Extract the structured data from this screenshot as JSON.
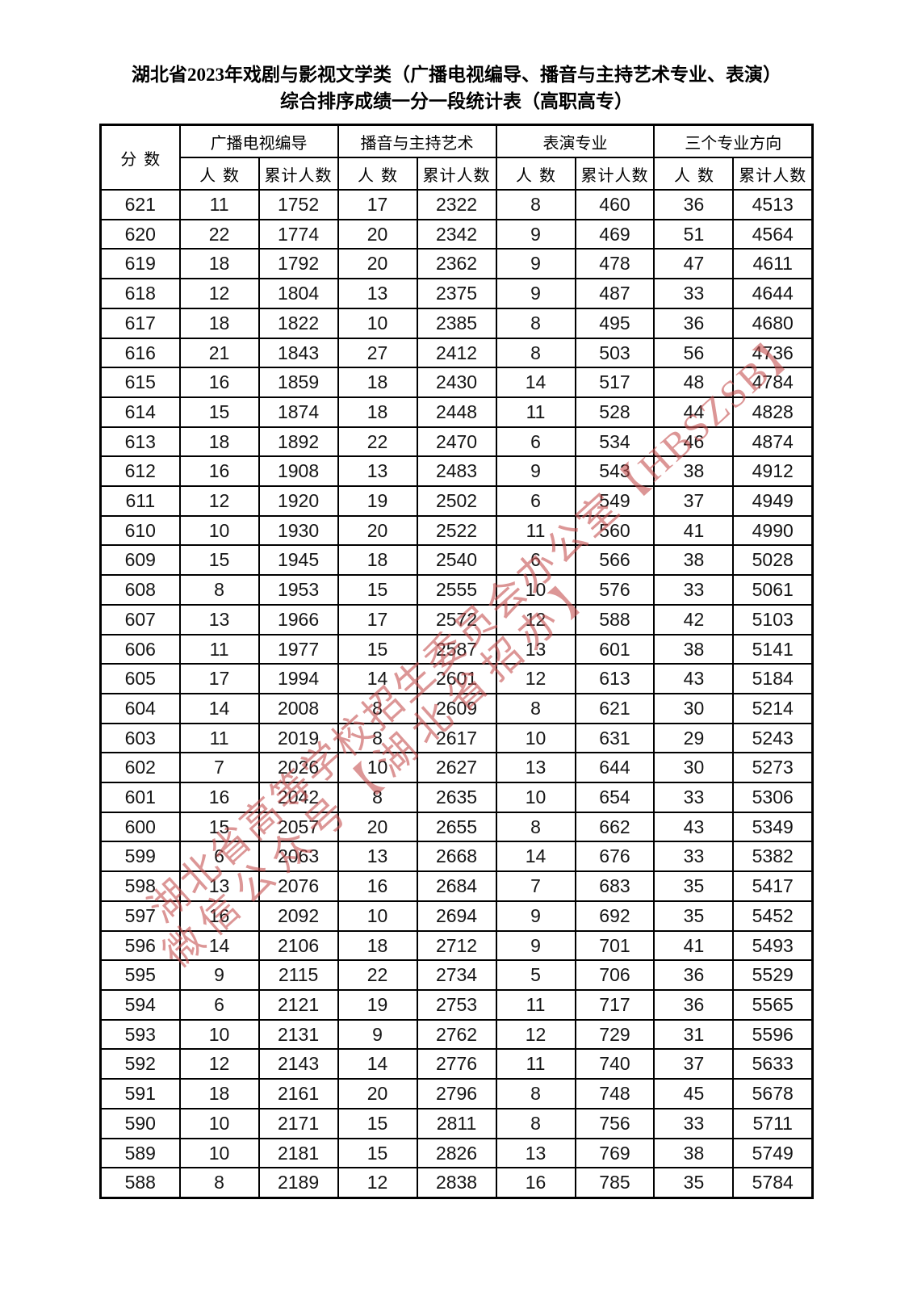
{
  "title": {
    "line1": "湖北省2023年戏剧与影视文学类（广播电视编导、播音与主持艺术专业、表演）",
    "line2": "综合排序成绩一分一段统计表（高职高专）"
  },
  "table": {
    "score_header": "分数",
    "groups": [
      "广播电视编导",
      "播音与主持艺术",
      "表演专业",
      "三个专业方向"
    ],
    "sub_headers": [
      "人数",
      "累计人数",
      "人数",
      "累计人数",
      "人数",
      "累计人数",
      "人数",
      "累计人数"
    ],
    "rows": [
      {
        "score": "621",
        "values": [
          "11",
          "1752",
          "17",
          "2322",
          "8",
          "460",
          "36",
          "4513"
        ]
      },
      {
        "score": "620",
        "values": [
          "22",
          "1774",
          "20",
          "2342",
          "9",
          "469",
          "51",
          "4564"
        ]
      },
      {
        "score": "619",
        "values": [
          "18",
          "1792",
          "20",
          "2362",
          "9",
          "478",
          "47",
          "4611"
        ]
      },
      {
        "score": "618",
        "values": [
          "12",
          "1804",
          "13",
          "2375",
          "9",
          "487",
          "33",
          "4644"
        ]
      },
      {
        "score": "617",
        "values": [
          "18",
          "1822",
          "10",
          "2385",
          "8",
          "495",
          "36",
          "4680"
        ]
      },
      {
        "score": "616",
        "values": [
          "21",
          "1843",
          "27",
          "2412",
          "8",
          "503",
          "56",
          "4736"
        ]
      },
      {
        "score": "615",
        "values": [
          "16",
          "1859",
          "18",
          "2430",
          "14",
          "517",
          "48",
          "4784"
        ]
      },
      {
        "score": "614",
        "values": [
          "15",
          "1874",
          "18",
          "2448",
          "11",
          "528",
          "44",
          "4828"
        ]
      },
      {
        "score": "613",
        "values": [
          "18",
          "1892",
          "22",
          "2470",
          "6",
          "534",
          "46",
          "4874"
        ]
      },
      {
        "score": "612",
        "values": [
          "16",
          "1908",
          "13",
          "2483",
          "9",
          "543",
          "38",
          "4912"
        ]
      },
      {
        "score": "611",
        "values": [
          "12",
          "1920",
          "19",
          "2502",
          "6",
          "549",
          "37",
          "4949"
        ]
      },
      {
        "score": "610",
        "values": [
          "10",
          "1930",
          "20",
          "2522",
          "11",
          "560",
          "41",
          "4990"
        ]
      },
      {
        "score": "609",
        "values": [
          "15",
          "1945",
          "18",
          "2540",
          "6",
          "566",
          "38",
          "5028"
        ]
      },
      {
        "score": "608",
        "values": [
          "8",
          "1953",
          "15",
          "2555",
          "10",
          "576",
          "33",
          "5061"
        ]
      },
      {
        "score": "607",
        "values": [
          "13",
          "1966",
          "17",
          "2572",
          "12",
          "588",
          "42",
          "5103"
        ]
      },
      {
        "score": "606",
        "values": [
          "11",
          "1977",
          "15",
          "2587",
          "13",
          "601",
          "38",
          "5141"
        ]
      },
      {
        "score": "605",
        "values": [
          "17",
          "1994",
          "14",
          "2601",
          "12",
          "613",
          "43",
          "5184"
        ]
      },
      {
        "score": "604",
        "values": [
          "14",
          "2008",
          "8",
          "2609",
          "8",
          "621",
          "30",
          "5214"
        ]
      },
      {
        "score": "603",
        "values": [
          "11",
          "2019",
          "8",
          "2617",
          "10",
          "631",
          "29",
          "5243"
        ]
      },
      {
        "score": "602",
        "values": [
          "7",
          "2026",
          "10",
          "2627",
          "13",
          "644",
          "30",
          "5273"
        ]
      },
      {
        "score": "601",
        "values": [
          "16",
          "2042",
          "8",
          "2635",
          "10",
          "654",
          "33",
          "5306"
        ]
      },
      {
        "score": "600",
        "values": [
          "15",
          "2057",
          "20",
          "2655",
          "8",
          "662",
          "43",
          "5349"
        ]
      },
      {
        "score": "599",
        "values": [
          "6",
          "2063",
          "13",
          "2668",
          "14",
          "676",
          "33",
          "5382"
        ]
      },
      {
        "score": "598",
        "values": [
          "13",
          "2076",
          "16",
          "2684",
          "7",
          "683",
          "35",
          "5417"
        ]
      },
      {
        "score": "597",
        "values": [
          "16",
          "2092",
          "10",
          "2694",
          "9",
          "692",
          "35",
          "5452"
        ]
      },
      {
        "score": "596",
        "values": [
          "14",
          "2106",
          "18",
          "2712",
          "9",
          "701",
          "41",
          "5493"
        ]
      },
      {
        "score": "595",
        "values": [
          "9",
          "2115",
          "22",
          "2734",
          "5",
          "706",
          "36",
          "5529"
        ]
      },
      {
        "score": "594",
        "values": [
          "6",
          "2121",
          "19",
          "2753",
          "11",
          "717",
          "36",
          "5565"
        ]
      },
      {
        "score": "593",
        "values": [
          "10",
          "2131",
          "9",
          "2762",
          "12",
          "729",
          "31",
          "5596"
        ]
      },
      {
        "score": "592",
        "values": [
          "12",
          "2143",
          "14",
          "2776",
          "11",
          "740",
          "37",
          "5633"
        ]
      },
      {
        "score": "591",
        "values": [
          "18",
          "2161",
          "20",
          "2796",
          "8",
          "748",
          "45",
          "5678"
        ]
      },
      {
        "score": "590",
        "values": [
          "10",
          "2171",
          "15",
          "2811",
          "8",
          "756",
          "33",
          "5711"
        ]
      },
      {
        "score": "589",
        "values": [
          "10",
          "2181",
          "15",
          "2826",
          "13",
          "769",
          "38",
          "5749"
        ]
      },
      {
        "score": "588",
        "values": [
          "8",
          "2189",
          "12",
          "2838",
          "16",
          "785",
          "35",
          "5784"
        ]
      }
    ]
  },
  "watermark": {
    "line1": "湖北省高等学校招生委员会办公室【HBSZSB】",
    "line2": "微信公众号【湖北省招办】",
    "color": "#c55050"
  }
}
